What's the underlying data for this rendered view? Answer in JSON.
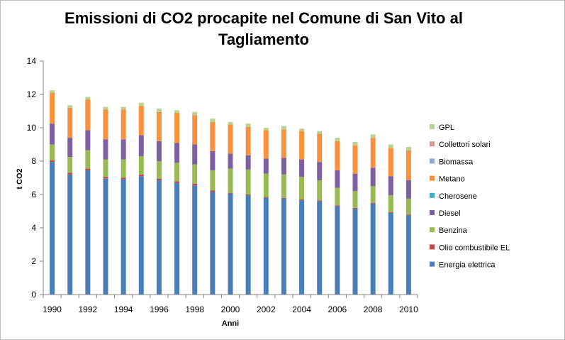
{
  "chart_data": {
    "type": "bar",
    "stacked": true,
    "title": "Emissioni di CO2 procapite nel Comune di San Vito al Tagliamento",
    "title_lines": [
      "Emissioni di CO2 procapite nel Comune di San Vito al",
      "Tagliamento"
    ],
    "xlabel": "Anni",
    "ylabel": "t CO2",
    "ylim": [
      0,
      14
    ],
    "yticks": [
      0,
      2,
      4,
      6,
      8,
      10,
      12,
      14
    ],
    "grid": false,
    "legend_position": "right",
    "categories": [
      "1990",
      "1991",
      "1992",
      "1993",
      "1994",
      "1995",
      "1996",
      "1997",
      "1998",
      "1999",
      "2000",
      "2001",
      "2002",
      "2003",
      "2004",
      "2005",
      "2006",
      "2007",
      "2008",
      "2009",
      "2010"
    ],
    "xtick_labels": [
      "1990",
      "",
      "1992",
      "",
      "1994",
      "",
      "1996",
      "",
      "1998",
      "",
      "2000",
      "",
      "2002",
      "",
      "2004",
      "",
      "2006",
      "",
      "2008",
      "",
      "2010"
    ],
    "series": [
      {
        "name": "Energia elettrica",
        "color": "#4a7ebb",
        "values": [
          7.95,
          7.2,
          7.45,
          6.95,
          6.9,
          7.1,
          6.85,
          6.7,
          6.55,
          6.15,
          6.05,
          5.95,
          5.8,
          5.75,
          5.65,
          5.6,
          5.3,
          5.15,
          5.45,
          4.9,
          4.75
        ]
      },
      {
        "name": "Olio combustibile EL",
        "color": "#be4b48",
        "values": [
          0.1,
          0.1,
          0.1,
          0.1,
          0.1,
          0.1,
          0.1,
          0.1,
          0.1,
          0.1,
          0.05,
          0.05,
          0.05,
          0.05,
          0.05,
          0.05,
          0.05,
          0.05,
          0.05,
          0.05,
          0.05
        ]
      },
      {
        "name": "Benzina",
        "color": "#98b954",
        "values": [
          0.95,
          0.95,
          1.1,
          1.05,
          1.1,
          1.1,
          1.05,
          1.1,
          1.15,
          1.2,
          1.45,
          1.5,
          1.4,
          1.4,
          1.35,
          1.2,
          1.05,
          1.0,
          1.0,
          1.0,
          0.95
        ]
      },
      {
        "name": "Diesel",
        "color": "#7d60a0",
        "values": [
          1.25,
          1.15,
          1.2,
          1.2,
          1.2,
          1.25,
          1.2,
          1.2,
          1.2,
          1.15,
          0.9,
          0.85,
          0.9,
          1.0,
          1.05,
          1.1,
          1.05,
          1.05,
          1.1,
          1.15,
          1.1
        ]
      },
      {
        "name": "Cherosene",
        "color": "#46aac5",
        "values": [
          0,
          0,
          0,
          0,
          0,
          0,
          0,
          0,
          0,
          0,
          0,
          0,
          0,
          0,
          0,
          0,
          0,
          0,
          0,
          0,
          0
        ]
      },
      {
        "name": "Metano",
        "color": "#f69240",
        "values": [
          1.85,
          1.8,
          1.85,
          1.8,
          1.8,
          1.75,
          1.75,
          1.8,
          1.75,
          1.75,
          1.75,
          1.7,
          1.7,
          1.7,
          1.7,
          1.7,
          1.75,
          1.7,
          1.8,
          1.7,
          1.8
        ]
      },
      {
        "name": "Biomassa",
        "color": "#8ea8d6",
        "values": [
          0,
          0,
          0,
          0,
          0,
          0,
          0,
          0,
          0,
          0,
          0,
          0,
          0,
          0,
          0,
          0,
          0,
          0,
          0,
          0,
          0
        ]
      },
      {
        "name": "Collettori solari",
        "color": "#d99694",
        "values": [
          0,
          0,
          0,
          0,
          0,
          0,
          0,
          0,
          0,
          0,
          0,
          0,
          0,
          0,
          0,
          0,
          0,
          0,
          0,
          0,
          0
        ]
      },
      {
        "name": "GPL",
        "color": "#b9d48f",
        "values": [
          0.15,
          0.15,
          0.15,
          0.15,
          0.15,
          0.2,
          0.2,
          0.15,
          0.2,
          0.2,
          0.15,
          0.2,
          0.15,
          0.2,
          0.15,
          0.15,
          0.2,
          0.2,
          0.2,
          0.2,
          0.2
        ]
      }
    ]
  }
}
